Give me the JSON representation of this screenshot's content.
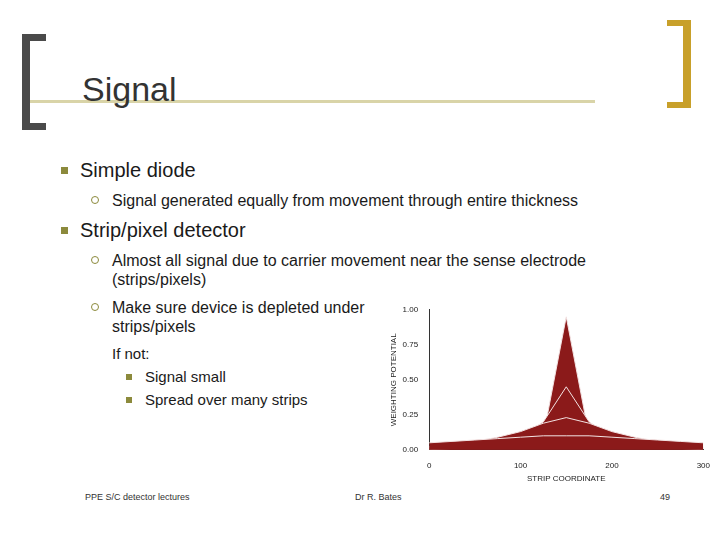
{
  "slide": {
    "title": "Signal",
    "bullets": [
      {
        "text": "Simple diode",
        "sub": [
          {
            "text": "Signal generated equally from movement through entire thickness"
          }
        ]
      },
      {
        "text": "Strip/pixel detector",
        "sub": [
          {
            "text": "Almost all signal due to carrier movement near the sense electrode (strips/pixels)"
          },
          {
            "text": "Make sure device is depleted under strips/pixels",
            "note": "If not:",
            "sub": [
              {
                "text": "Signal small"
              },
              {
                "text": "Spread over many strips"
              }
            ]
          }
        ]
      }
    ],
    "footer": {
      "left": "PPE S/C detector lectures",
      "center": "Dr R. Bates",
      "page": 49
    }
  },
  "chart_data": {
    "type": "line",
    "x_label": "STRIP COORDINATE",
    "y_label": "WEIGHTING POTENTIAL",
    "x": [
      0,
      25,
      50,
      75,
      100,
      125,
      150,
      175,
      200,
      225,
      250,
      275,
      300
    ],
    "series": [
      {
        "color": "#8b1a1a",
        "values": [
          0.05,
          0.06,
          0.07,
          0.08,
          0.09,
          0.1,
          0.1,
          0.1,
          0.09,
          0.08,
          0.07,
          0.06,
          0.05
        ]
      },
      {
        "color": "#8b1a1a",
        "values": [
          0.02,
          0.04,
          0.06,
          0.09,
          0.13,
          0.19,
          0.23,
          0.19,
          0.13,
          0.09,
          0.06,
          0.04,
          0.02
        ]
      },
      {
        "color": "#8b1a1a",
        "values": [
          0.01,
          0.02,
          0.03,
          0.05,
          0.09,
          0.2,
          0.45,
          0.2,
          0.09,
          0.05,
          0.03,
          0.02,
          0.01
        ]
      },
      {
        "color": "#8b1a1a",
        "values": [
          0.0,
          0.01,
          0.01,
          0.02,
          0.04,
          0.1,
          0.95,
          0.1,
          0.04,
          0.02,
          0.01,
          0.01,
          0.0
        ]
      }
    ],
    "xlim": [
      0,
      300
    ],
    "xticks": [
      0,
      100,
      200,
      300
    ],
    "ylim": [
      0,
      1
    ],
    "yticks": [
      {
        "value": 0,
        "label": "0.00"
      },
      {
        "value": 0.25,
        "label": "0.25"
      },
      {
        "value": 0.5,
        "label": "0.50"
      },
      {
        "value": 0.75,
        "label": "0.75"
      },
      {
        "value": 1,
        "label": "1.00"
      }
    ],
    "grid": false
  }
}
